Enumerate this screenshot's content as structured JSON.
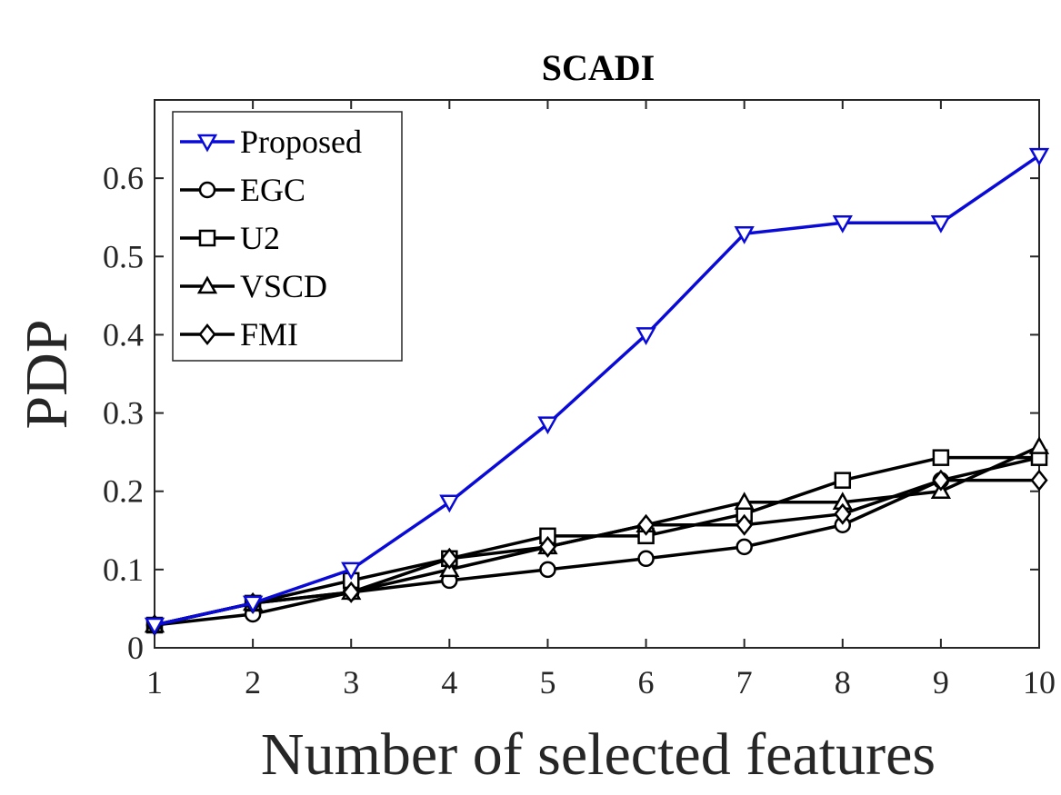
{
  "chart_data": {
    "type": "line",
    "title": "SCADI",
    "xlabel": "Number of selected features",
    "ylabel": "PDP",
    "x": [
      1,
      2,
      3,
      4,
      5,
      6,
      7,
      8,
      9,
      10
    ],
    "xlim": [
      1,
      10
    ],
    "ylim": [
      0,
      0.7
    ],
    "xticks": [
      "1",
      "2",
      "3",
      "4",
      "5",
      "6",
      "7",
      "8",
      "9",
      "10"
    ],
    "yticks": [
      "0",
      "0.1",
      "0.2",
      "0.3",
      "0.4",
      "0.5",
      "0.6"
    ],
    "grid": false,
    "legend_position": "top-left",
    "series": [
      {
        "name": "Proposed",
        "color": "#0a0ad8",
        "marker": "triangle-down",
        "values": [
          0.029,
          0.057,
          0.1,
          0.186,
          0.286,
          0.4,
          0.529,
          0.543,
          0.543,
          0.629
        ]
      },
      {
        "name": "EGC",
        "color": "#000000",
        "marker": "circle",
        "values": [
          0.029,
          0.043,
          0.071,
          0.086,
          0.1,
          0.114,
          0.129,
          0.157,
          0.214,
          0.243
        ]
      },
      {
        "name": "U2",
        "color": "#000000",
        "marker": "square",
        "values": [
          0.029,
          0.057,
          0.086,
          0.114,
          0.143,
          0.143,
          0.171,
          0.214,
          0.243,
          0.243
        ]
      },
      {
        "name": "VSCD",
        "color": "#000000",
        "marker": "triangle-up",
        "values": [
          0.029,
          0.057,
          0.071,
          0.1,
          0.129,
          0.157,
          0.186,
          0.186,
          0.2,
          0.257
        ]
      },
      {
        "name": "FMI",
        "color": "#000000",
        "marker": "diamond",
        "values": [
          0.029,
          0.057,
          0.071,
          0.114,
          0.129,
          0.157,
          0.157,
          0.171,
          0.214,
          0.214
        ]
      }
    ]
  }
}
